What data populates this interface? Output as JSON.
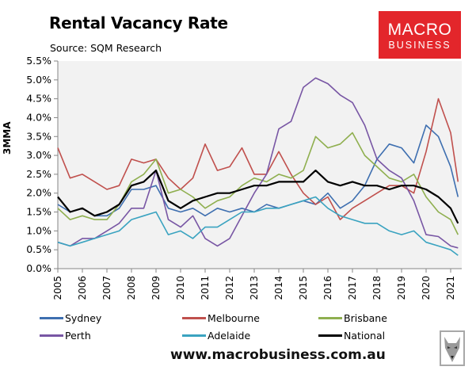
{
  "header": {
    "title": "Rental Vacancy Rate",
    "subtitle": "Source: SQM Research"
  },
  "logo": {
    "line1": "MACRO",
    "line2": "BUSINESS",
    "color": "#e3262b"
  },
  "footer": {
    "url": "www.macrobusiness.com.au",
    "mascot_icon": "wolf-icon"
  },
  "chart_data": {
    "type": "line",
    "title": "Rental Vacancy Rate",
    "subtitle": "Source: SQM Research",
    "xlabel": "",
    "ylabel": "3MMA",
    "ylim": [
      0,
      5.5
    ],
    "yticks": [
      "0.0%",
      "0.5%",
      "1.0%",
      "1.5%",
      "2.0%",
      "2.5%",
      "3.0%",
      "3.5%",
      "4.0%",
      "4.5%",
      "5.0%",
      "5.5%"
    ],
    "xticks": [
      "2005",
      "2006",
      "2007",
      "2008",
      "2009",
      "2010",
      "2011",
      "2012",
      "2013",
      "2014",
      "2015",
      "2016",
      "2017",
      "2018",
      "2019",
      "2020",
      "2021"
    ],
    "grid": false,
    "legend_position": "bottom",
    "x": [
      2005.0,
      2005.5,
      2006.0,
      2006.5,
      2007.0,
      2007.5,
      2008.0,
      2008.5,
      2009.0,
      2009.5,
      2010.0,
      2010.5,
      2011.0,
      2011.5,
      2012.0,
      2012.5,
      2013.0,
      2013.5,
      2014.0,
      2014.5,
      2015.0,
      2015.5,
      2016.0,
      2016.5,
      2017.0,
      2017.5,
      2018.0,
      2018.5,
      2019.0,
      2019.5,
      2020.0,
      2020.5,
      2021.0,
      2021.3
    ],
    "series": [
      {
        "name": "Sydney",
        "color": "#3e6fb0",
        "values": [
          1.7,
          1.5,
          1.6,
          1.4,
          1.4,
          1.6,
          2.1,
          2.1,
          2.2,
          1.6,
          1.5,
          1.6,
          1.4,
          1.6,
          1.5,
          1.6,
          1.5,
          1.7,
          1.6,
          1.7,
          1.8,
          1.7,
          2.0,
          1.6,
          1.8,
          2.2,
          2.9,
          3.3,
          3.2,
          2.8,
          3.8,
          3.5,
          2.7,
          1.9
        ]
      },
      {
        "name": "Melbourne",
        "color": "#c0504d",
        "values": [
          3.2,
          2.4,
          2.5,
          2.3,
          2.1,
          2.2,
          2.9,
          2.8,
          2.9,
          2.4,
          2.1,
          2.4,
          3.3,
          2.6,
          2.7,
          3.2,
          2.5,
          2.5,
          3.1,
          2.5,
          2.0,
          1.7,
          1.9,
          1.3,
          1.6,
          1.8,
          2.0,
          2.2,
          2.2,
          2.0,
          3.1,
          4.5,
          3.6,
          2.3
        ]
      },
      {
        "name": "Brisbane",
        "color": "#8faf4f",
        "values": [
          1.6,
          1.3,
          1.4,
          1.3,
          1.3,
          1.7,
          2.3,
          2.5,
          2.9,
          2.0,
          2.1,
          1.9,
          1.6,
          1.8,
          1.9,
          2.2,
          2.4,
          2.3,
          2.5,
          2.4,
          2.6,
          3.5,
          3.2,
          3.3,
          3.6,
          3.0,
          2.7,
          2.4,
          2.3,
          2.5,
          1.9,
          1.5,
          1.3,
          0.9
        ]
      },
      {
        "name": "Perth",
        "color": "#7856a4",
        "values": [
          0.7,
          0.6,
          0.8,
          0.8,
          1.0,
          1.2,
          1.6,
          1.6,
          2.6,
          1.3,
          1.1,
          1.4,
          0.8,
          0.6,
          0.8,
          1.4,
          2.0,
          2.5,
          3.7,
          3.9,
          4.8,
          5.05,
          4.9,
          4.6,
          4.4,
          3.8,
          2.9,
          2.6,
          2.4,
          1.8,
          0.9,
          0.85,
          0.6,
          0.55
        ]
      },
      {
        "name": "Adelaide",
        "color": "#3aa3c0",
        "values": [
          0.7,
          0.6,
          0.7,
          0.8,
          0.9,
          1.0,
          1.3,
          1.4,
          1.5,
          0.9,
          1.0,
          0.8,
          1.1,
          1.1,
          1.3,
          1.5,
          1.5,
          1.6,
          1.6,
          1.7,
          1.8,
          1.9,
          1.6,
          1.4,
          1.3,
          1.2,
          1.2,
          1.0,
          0.9,
          1.0,
          0.7,
          0.6,
          0.5,
          0.35
        ]
      },
      {
        "name": "National",
        "color": "#000000",
        "values": [
          1.9,
          1.5,
          1.6,
          1.4,
          1.5,
          1.7,
          2.2,
          2.3,
          2.6,
          1.8,
          1.6,
          1.8,
          1.9,
          2.0,
          2.0,
          2.1,
          2.2,
          2.2,
          2.3,
          2.3,
          2.3,
          2.6,
          2.3,
          2.2,
          2.3,
          2.2,
          2.2,
          2.1,
          2.2,
          2.2,
          2.1,
          1.9,
          1.6,
          1.2
        ]
      }
    ]
  },
  "legend": {
    "items": [
      {
        "label": "Sydney",
        "color": "#3e6fb0"
      },
      {
        "label": "Melbourne",
        "color": "#c0504d"
      },
      {
        "label": "Brisbane",
        "color": "#8faf4f"
      },
      {
        "label": "Perth",
        "color": "#7856a4"
      },
      {
        "label": "Adelaide",
        "color": "#3aa3c0"
      },
      {
        "label": "National",
        "color": "#000000"
      }
    ]
  }
}
